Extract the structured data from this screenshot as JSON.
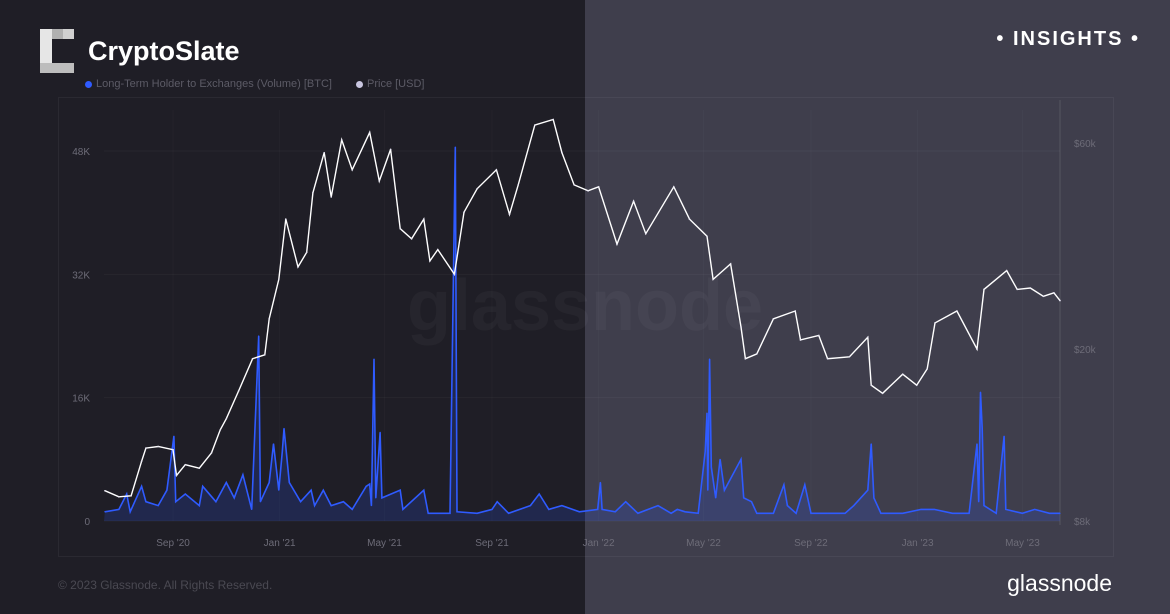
{
  "header": {
    "brand": "CryptoSlate",
    "badge": "• INSIGHTS •"
  },
  "footer": {
    "copyright": "© 2023 Glassnode. All Rights Reserved.",
    "logo": "glassnode",
    "watermark": "glassnode"
  },
  "colors": {
    "volume": "#2f5bff",
    "price": "#ffffff",
    "bg_left": "#1f1e26",
    "bg_right": "#3f3e4c"
  },
  "chart_data": {
    "type": "line",
    "grid": true,
    "legend_placement": "top-left",
    "x_ticks": [
      {
        "date": "2020-09-01",
        "label": "Sep '20"
      },
      {
        "date": "2021-01-01",
        "label": "Jan '21"
      },
      {
        "date": "2021-05-01",
        "label": "May '21"
      },
      {
        "date": "2021-09-01",
        "label": "Sep '21"
      },
      {
        "date": "2022-01-01",
        "label": "Jan '22"
      },
      {
        "date": "2022-05-01",
        "label": "May '22"
      },
      {
        "date": "2022-09-01",
        "label": "Sep '22"
      },
      {
        "date": "2023-01-01",
        "label": "Jan '23"
      },
      {
        "date": "2023-05-01",
        "label": "May '23"
      }
    ],
    "x_range": [
      "2020-06-14",
      "2023-06-13"
    ],
    "left_axis": {
      "scale": "linear",
      "range": [
        0,
        48000
      ],
      "ticks": [
        {
          "v": 0,
          "label": "0"
        },
        {
          "v": 16000,
          "label": "16K"
        },
        {
          "v": 32000,
          "label": "32K"
        },
        {
          "v": 48000,
          "label": "48K"
        }
      ]
    },
    "right_axis": {
      "scale": "log",
      "range": [
        8000,
        60000
      ],
      "ticks": [
        {
          "v": 8000,
          "label": "$8k"
        },
        {
          "v": 20000,
          "label": "$20k"
        },
        {
          "v": 60000,
          "label": "$60k"
        }
      ]
    },
    "series": [
      {
        "name": "Long-Term Holder to Exchanges (Volume) [BTC]",
        "axis": "left",
        "unit": "K BTC",
        "points": [
          [
            "2020-06-15",
            1.2
          ],
          [
            "2020-07-01",
            1.5
          ],
          [
            "2020-07-10",
            3.5
          ],
          [
            "2020-07-14",
            1.2
          ],
          [
            "2020-07-27",
            4.5
          ],
          [
            "2020-08-01",
            2.5
          ],
          [
            "2020-08-15",
            2
          ],
          [
            "2020-08-25",
            4
          ],
          [
            "2020-09-02",
            11
          ],
          [
            "2020-09-04",
            2.5
          ],
          [
            "2020-09-15",
            3.5
          ],
          [
            "2020-10-01",
            2
          ],
          [
            "2020-10-05",
            4.5
          ],
          [
            "2020-10-20",
            2.5
          ],
          [
            "2020-11-01",
            5
          ],
          [
            "2020-11-10",
            3
          ],
          [
            "2020-11-20",
            6
          ],
          [
            "2020-11-30",
            1.5
          ],
          [
            "2020-12-08",
            24
          ],
          [
            "2020-12-10",
            2.5
          ],
          [
            "2020-12-20",
            5
          ],
          [
            "2020-12-25",
            10
          ],
          [
            "2020-12-31",
            4
          ],
          [
            "2021-01-04",
            9
          ],
          [
            "2021-01-06",
            12
          ],
          [
            "2021-01-12",
            5
          ],
          [
            "2021-01-25",
            2.5
          ],
          [
            "2021-02-06",
            4
          ],
          [
            "2021-02-10",
            2
          ],
          [
            "2021-02-20",
            4
          ],
          [
            "2021-03-01",
            2
          ],
          [
            "2021-03-15",
            2.5
          ],
          [
            "2021-03-25",
            1.5
          ],
          [
            "2021-04-10",
            4.5
          ],
          [
            "2021-04-14",
            4.8
          ],
          [
            "2021-04-16",
            2
          ],
          [
            "2021-04-19",
            21
          ],
          [
            "2021-04-21",
            3
          ],
          [
            "2021-04-26",
            11.5
          ],
          [
            "2021-04-28",
            3
          ],
          [
            "2021-05-19",
            4
          ],
          [
            "2021-05-22",
            1.5
          ],
          [
            "2021-06-15",
            4
          ],
          [
            "2021-06-20",
            1
          ],
          [
            "2021-07-15",
            1
          ],
          [
            "2021-07-21",
            48.5
          ],
          [
            "2021-07-23",
            1.2
          ],
          [
            "2021-08-15",
            1
          ],
          [
            "2021-09-01",
            1.5
          ],
          [
            "2021-09-07",
            2.5
          ],
          [
            "2021-09-20",
            1
          ],
          [
            "2021-10-15",
            2
          ],
          [
            "2021-10-25",
            3.5
          ],
          [
            "2021-11-05",
            1.5
          ],
          [
            "2021-11-20",
            2
          ],
          [
            "2021-12-10",
            1.2
          ],
          [
            "2021-12-31",
            1.5
          ],
          [
            "2022-01-03",
            5
          ],
          [
            "2022-01-05",
            1.5
          ],
          [
            "2022-01-20",
            1.2
          ],
          [
            "2022-02-01",
            2.5
          ],
          [
            "2022-02-15",
            1
          ],
          [
            "2022-03-10",
            2
          ],
          [
            "2022-03-25",
            1
          ],
          [
            "2022-04-01",
            1.5
          ],
          [
            "2022-04-10",
            1.2
          ],
          [
            "2022-04-25",
            1
          ],
          [
            "2022-05-03",
            9
          ],
          [
            "2022-05-05",
            14
          ],
          [
            "2022-05-06",
            4
          ],
          [
            "2022-05-08",
            21
          ],
          [
            "2022-05-10",
            7
          ],
          [
            "2022-05-15",
            3
          ],
          [
            "2022-05-20",
            8
          ],
          [
            "2022-05-25",
            4
          ],
          [
            "2022-06-13",
            8
          ],
          [
            "2022-06-16",
            3
          ],
          [
            "2022-06-25",
            2.5
          ],
          [
            "2022-07-01",
            1
          ],
          [
            "2022-07-20",
            1
          ],
          [
            "2022-08-01",
            4.7
          ],
          [
            "2022-08-05",
            2
          ],
          [
            "2022-08-15",
            1
          ],
          [
            "2022-08-25",
            4.7
          ],
          [
            "2022-09-01",
            1
          ],
          [
            "2022-09-20",
            1
          ],
          [
            "2022-10-10",
            1
          ],
          [
            "2022-10-20",
            2
          ],
          [
            "2022-11-05",
            4
          ],
          [
            "2022-11-09",
            10
          ],
          [
            "2022-11-12",
            3
          ],
          [
            "2022-11-20",
            1
          ],
          [
            "2022-12-15",
            1
          ],
          [
            "2023-01-05",
            1.5
          ],
          [
            "2023-01-20",
            1.5
          ],
          [
            "2023-02-10",
            1
          ],
          [
            "2023-03-01",
            1
          ],
          [
            "2023-03-10",
            10
          ],
          [
            "2023-03-12",
            2.5
          ],
          [
            "2023-03-14",
            16.7
          ],
          [
            "2023-03-16",
            12
          ],
          [
            "2023-03-18",
            2
          ],
          [
            "2023-04-01",
            1
          ],
          [
            "2023-04-10",
            11
          ],
          [
            "2023-04-12",
            1.5
          ],
          [
            "2023-05-01",
            1
          ],
          [
            "2023-05-15",
            1.5
          ],
          [
            "2023-06-01",
            1
          ],
          [
            "2023-06-13",
            1
          ]
        ]
      },
      {
        "name": "Price [USD]",
        "axis": "right",
        "unit": "USD",
        "points": [
          [
            "2020-06-15",
            9400
          ],
          [
            "2020-07-01",
            9100
          ],
          [
            "2020-07-15",
            9150
          ],
          [
            "2020-07-27",
            11000
          ],
          [
            "2020-08-01",
            11800
          ],
          [
            "2020-08-15",
            11900
          ],
          [
            "2020-09-01",
            11700
          ],
          [
            "2020-09-05",
            10200
          ],
          [
            "2020-09-15",
            10800
          ],
          [
            "2020-10-01",
            10600
          ],
          [
            "2020-10-15",
            11500
          ],
          [
            "2020-10-25",
            13000
          ],
          [
            "2020-11-01",
            13800
          ],
          [
            "2020-11-15",
            16000
          ],
          [
            "2020-12-01",
            19000
          ],
          [
            "2020-12-15",
            19400
          ],
          [
            "2020-12-20",
            23500
          ],
          [
            "2020-12-31",
            29000
          ],
          [
            "2021-01-08",
            40000
          ],
          [
            "2021-01-22",
            31000
          ],
          [
            "2021-02-01",
            33500
          ],
          [
            "2021-02-08",
            46000
          ],
          [
            "2021-02-21",
            57000
          ],
          [
            "2021-03-01",
            45000
          ],
          [
            "2021-03-13",
            61000
          ],
          [
            "2021-03-25",
            52000
          ],
          [
            "2021-04-14",
            63500
          ],
          [
            "2021-04-25",
            49000
          ],
          [
            "2021-05-08",
            58000
          ],
          [
            "2021-05-19",
            38000
          ],
          [
            "2021-06-01",
            36000
          ],
          [
            "2021-06-15",
            40000
          ],
          [
            "2021-06-22",
            32000
          ],
          [
            "2021-07-01",
            34000
          ],
          [
            "2021-07-20",
            29800
          ],
          [
            "2021-07-31",
            41500
          ],
          [
            "2021-08-15",
            47000
          ],
          [
            "2021-09-06",
            52000
          ],
          [
            "2021-09-21",
            41000
          ],
          [
            "2021-10-01",
            48000
          ],
          [
            "2021-10-20",
            66000
          ],
          [
            "2021-11-10",
            68000
          ],
          [
            "2021-11-20",
            57000
          ],
          [
            "2021-12-04",
            48000
          ],
          [
            "2021-12-20",
            46500
          ],
          [
            "2022-01-01",
            47500
          ],
          [
            "2022-01-22",
            35000
          ],
          [
            "2022-02-10",
            44000
          ],
          [
            "2022-02-24",
            37000
          ],
          [
            "2022-03-28",
            47500
          ],
          [
            "2022-04-15",
            40000
          ],
          [
            "2022-05-05",
            36500
          ],
          [
            "2022-05-12",
            29000
          ],
          [
            "2022-06-01",
            31500
          ],
          [
            "2022-06-13",
            22500
          ],
          [
            "2022-06-18",
            19000
          ],
          [
            "2022-07-01",
            19500
          ],
          [
            "2022-07-20",
            23500
          ],
          [
            "2022-08-14",
            24500
          ],
          [
            "2022-08-20",
            21000
          ],
          [
            "2022-09-10",
            21500
          ],
          [
            "2022-09-20",
            19000
          ],
          [
            "2022-10-15",
            19200
          ],
          [
            "2022-11-05",
            21300
          ],
          [
            "2022-11-09",
            16500
          ],
          [
            "2022-11-22",
            15800
          ],
          [
            "2022-12-15",
            17500
          ],
          [
            "2022-12-31",
            16500
          ],
          [
            "2023-01-12",
            18000
          ],
          [
            "2023-01-21",
            23000
          ],
          [
            "2023-02-15",
            24500
          ],
          [
            "2023-03-10",
            20000
          ],
          [
            "2023-03-18",
            27500
          ],
          [
            "2023-04-13",
            30400
          ],
          [
            "2023-04-25",
            27500
          ],
          [
            "2023-05-10",
            27700
          ],
          [
            "2023-05-25",
            26500
          ],
          [
            "2023-06-06",
            27000
          ],
          [
            "2023-06-13",
            25900
          ]
        ]
      }
    ]
  }
}
